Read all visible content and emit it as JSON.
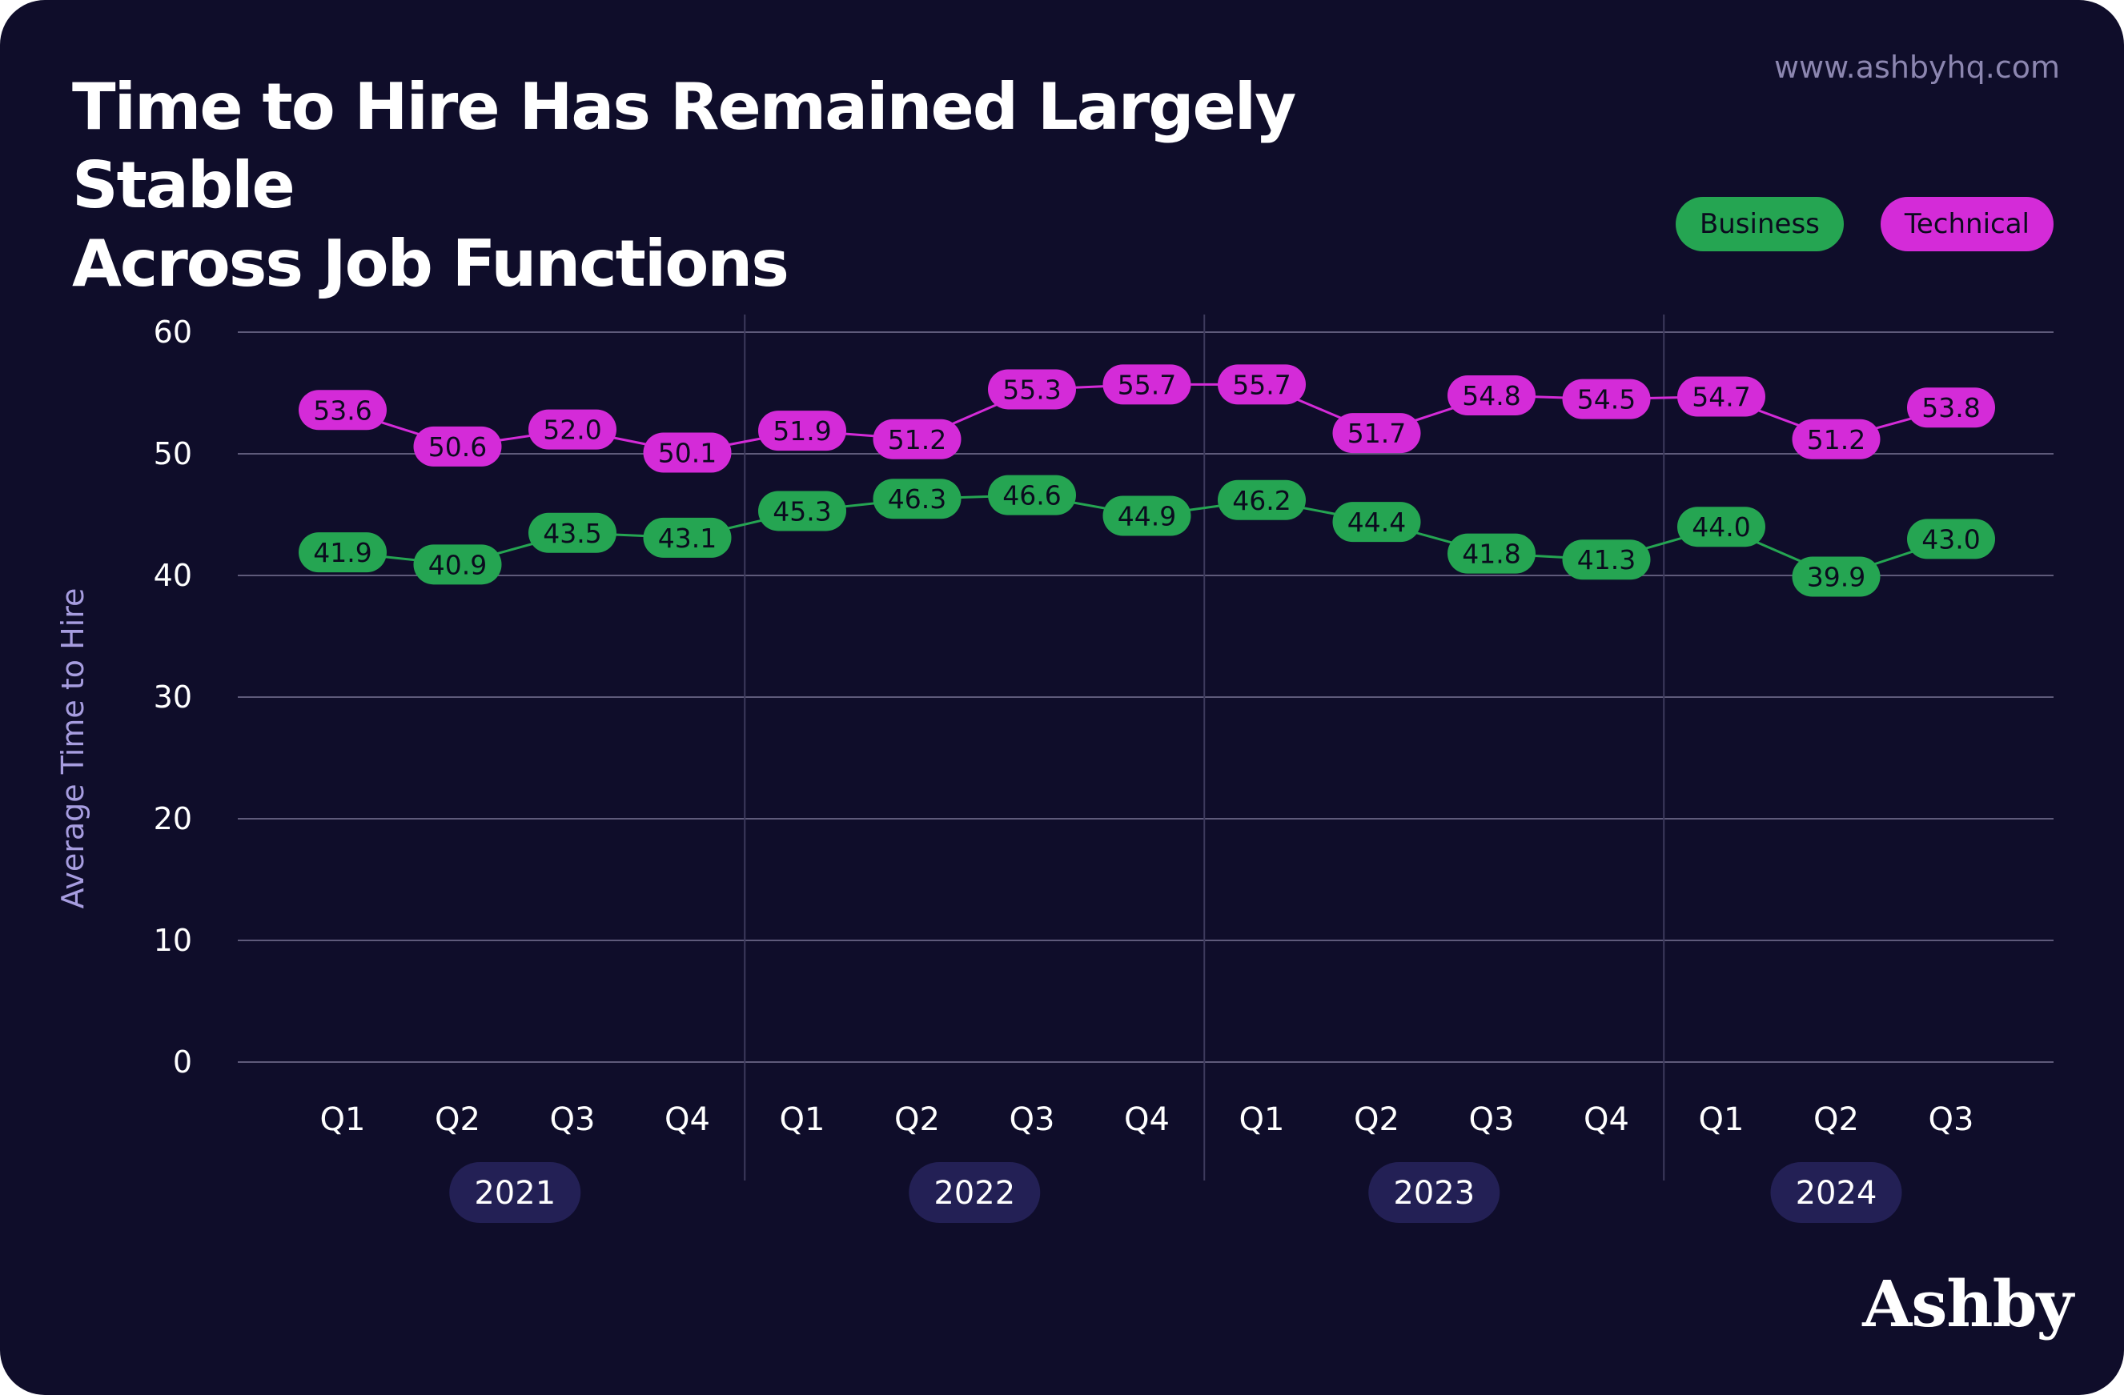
{
  "header": {
    "title_line1": "Time to Hire Has Remained Largely Stable",
    "title_line2": "Across Job Functions",
    "url": "www.ashbyhq.com"
  },
  "brand": {
    "logo_text": "Ashby"
  },
  "colors": {
    "background": "#0f0d2a",
    "business": "#25a552",
    "technical": "#d42bd8",
    "grid": "#5e5a7a",
    "year_pill": "#232055",
    "axis_label": "#a79de0"
  },
  "chart_data": {
    "type": "line",
    "title": "Time to Hire Has Remained Largely Stable Across Job Functions",
    "ylabel": "Average Time to Hire",
    "ylim": [
      0,
      60
    ],
    "yticks": [
      0,
      10,
      20,
      30,
      40,
      50,
      60
    ],
    "grid": true,
    "legend_position": "top-right",
    "categories": [
      "Q1",
      "Q2",
      "Q3",
      "Q4",
      "Q1",
      "Q2",
      "Q3",
      "Q4",
      "Q1",
      "Q2",
      "Q3",
      "Q4",
      "Q1",
      "Q2",
      "Q3"
    ],
    "groups": [
      {
        "label": "2021",
        "count": 4
      },
      {
        "label": "2022",
        "count": 4
      },
      {
        "label": "2023",
        "count": 4
      },
      {
        "label": "2024",
        "count": 3
      }
    ],
    "series": [
      {
        "name": "Business",
        "color": "#25a552",
        "values": [
          41.9,
          40.9,
          43.5,
          43.1,
          45.3,
          46.3,
          46.6,
          44.9,
          46.2,
          44.4,
          41.8,
          41.3,
          44.0,
          39.9,
          43.0
        ]
      },
      {
        "name": "Technical",
        "color": "#d42bd8",
        "values": [
          53.6,
          50.6,
          52.0,
          50.1,
          51.9,
          51.2,
          55.3,
          55.7,
          55.7,
          51.7,
          54.8,
          54.5,
          54.7,
          51.2,
          53.8
        ]
      }
    ]
  }
}
